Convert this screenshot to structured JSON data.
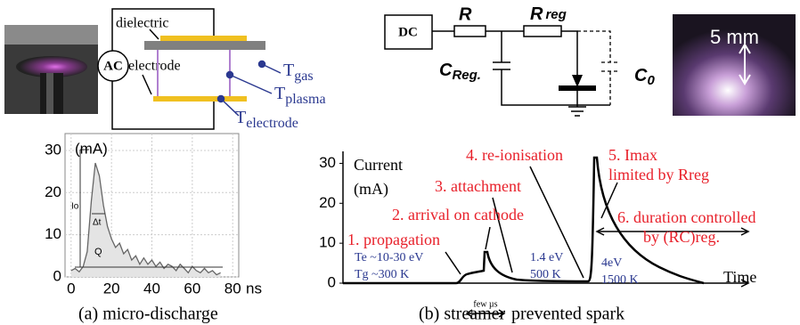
{
  "plasma_setup": {
    "label_dielectric": "dielectric",
    "label_electrode": "electrode",
    "source": "AC",
    "temperatures": [
      {
        "symbol": "T",
        "subscript": "gas"
      },
      {
        "symbol": "T",
        "subscript": "plasma"
      },
      {
        "symbol": "T",
        "subscript": "electrode"
      }
    ]
  },
  "circuit": {
    "source": "DC",
    "resistor": "R",
    "reg_resistor": {
      "symbol": "R",
      "subscript": "reg"
    },
    "reg_capacitor": {
      "symbol": "C",
      "subscript": "Reg."
    },
    "capacitor": {
      "symbol": "C",
      "subscript": "0"
    }
  },
  "photo": {
    "scale": "5 mm"
  },
  "chart_data": [
    {
      "type": "line",
      "caption": "(a) micro-discharge",
      "y_unit": "(mA)",
      "x_unit": "ns",
      "annotations": {
        "peak": "Io",
        "width": "Δt",
        "charge": "Q"
      },
      "x": [
        0,
        2,
        4,
        6,
        8,
        10,
        12,
        14,
        16,
        18,
        20,
        22,
        24,
        26,
        28,
        30,
        32,
        34,
        36,
        38,
        40,
        42,
        44,
        46,
        48,
        50,
        52,
        54,
        56,
        58,
        60,
        62,
        64,
        66,
        68,
        70,
        72,
        74
      ],
      "values": [
        1.5,
        2,
        1.2,
        2.5,
        6,
        18,
        27,
        24,
        17,
        12,
        9,
        7,
        8,
        5.5,
        6.5,
        4,
        5,
        3,
        4.5,
        3,
        4,
        2.5,
        3.5,
        2,
        3,
        2.5,
        1.5,
        3,
        2,
        1,
        2.5,
        1.5,
        1,
        2,
        1,
        1.5,
        0.5,
        1
      ],
      "color": "#666666",
      "xlim": [
        -3,
        83
      ],
      "xticks": [
        0,
        20,
        40,
        60,
        80
      ],
      "ylim": [
        0,
        34
      ],
      "yticks": [
        0,
        10,
        20,
        30
      ],
      "grid": true
    },
    {
      "type": "schematic",
      "caption": "(b) streamer",
      "duration_label": "few µs",
      "caption_end": "prevented spark",
      "y_label": [
        "Current",
        "(mA)"
      ],
      "x_label": "Time",
      "ylim": [
        0,
        33
      ],
      "yticks": [
        0,
        10,
        20,
        30
      ],
      "phases": [
        [
          "1. propagation"
        ],
        [
          "2. arrival on cathode"
        ],
        [
          "3. attachment"
        ],
        [
          "4. re-ionisation"
        ],
        [
          "5. Imax",
          "limited by Rreg"
        ],
        [
          "6. duration controlled",
          "by (RC)reg."
        ]
      ],
      "conditions": [
        [
          "Te ~10-30 eV",
          "Tg ~300 K"
        ],
        [
          "1.4 eV",
          "500 K"
        ],
        [
          "4eV",
          "1500 K"
        ]
      ],
      "phase_color": "#e8202a",
      "condition_color": "#2b3990"
    }
  ]
}
